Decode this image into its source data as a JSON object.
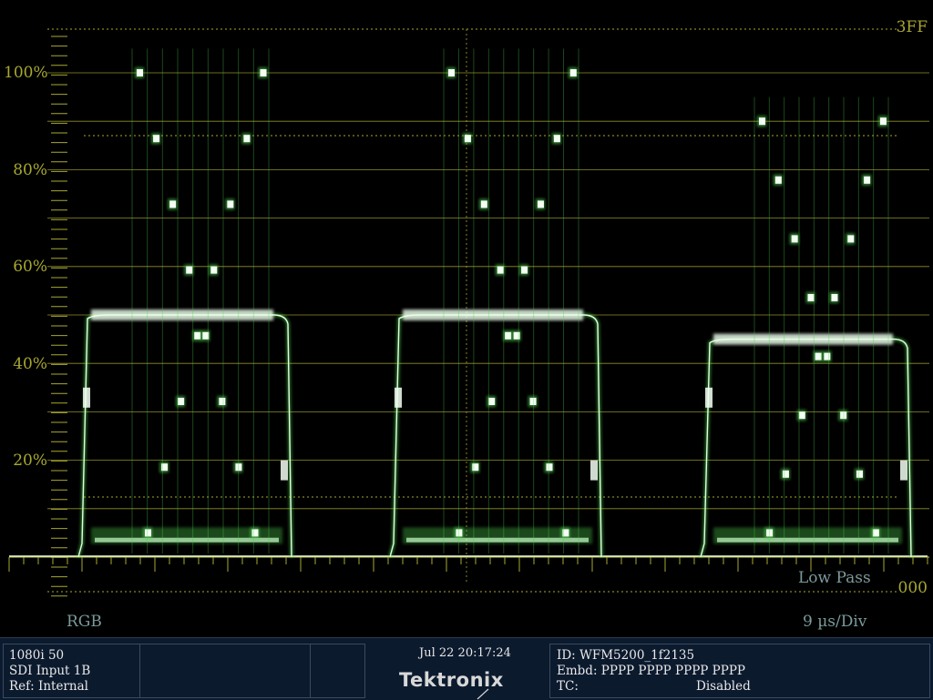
{
  "scope": {
    "top_code_label": "3FF",
    "bottom_code_label": "000",
    "percent_labels": [
      "100%",
      "80%",
      "60%",
      "40%",
      "20%"
    ],
    "colorspace_label": "RGB",
    "filter_label": "Low Pass",
    "sweep_label": "9 µs/Div",
    "graticule_color": "#a8a830",
    "trace_color": "#4fd04f"
  },
  "status_bar": {
    "left": {
      "format": "1080i 50",
      "input": "SDI Input 1B",
      "ref": "Ref: Internal"
    },
    "center": {
      "datetime": "Jul 22 20:17:24",
      "brand": "Tektronix"
    },
    "right": {
      "id": "ID: WFM5200_1f2135",
      "embd": "Embd: PPPP PPPP PPPP PPPP",
      "tc_label": "TC:",
      "tc_value": "Disabled"
    }
  }
}
